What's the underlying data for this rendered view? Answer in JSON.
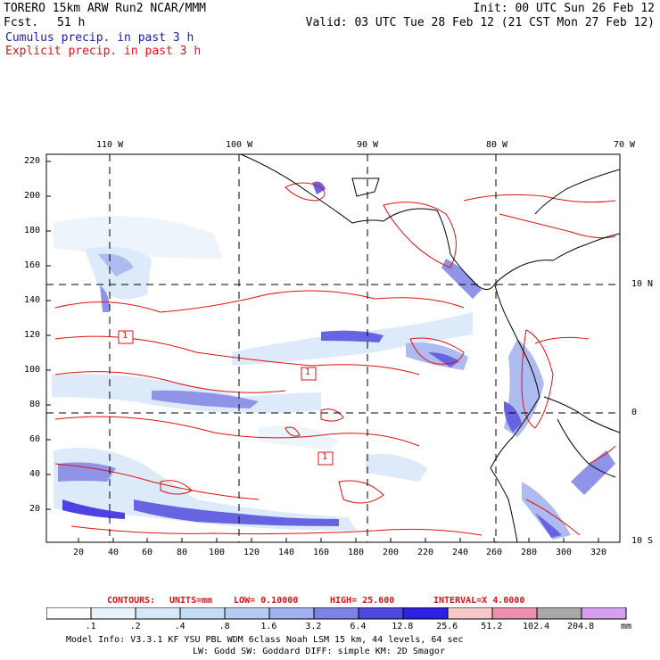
{
  "header": {
    "model_line": "TORERO  15km ARW   Run2    NCAR/MMM",
    "fcst_label": "Fcst.",
    "fcst_value": "51 h",
    "init": "Init: 00 UTC Sun 26 Feb 12",
    "valid": "Valid: 03 UTC Tue 28 Feb 12 (21 CST Mon 27 Feb 12)",
    "field1": "Cumulus precip. in past 3 h",
    "field2": "Explicit precip. in past 3 h"
  },
  "axes": {
    "top_lon_labels": [
      "110 W",
      "100 W",
      "90 W",
      "80 W",
      "70 W"
    ],
    "right_lat_labels": [
      "10 N",
      "0",
      "10 S"
    ],
    "left_y_ticks": [
      "220",
      "200",
      "180",
      "160",
      "140",
      "120",
      "100",
      "80",
      "60",
      "40",
      "20"
    ],
    "bottom_x_ticks": [
      "20",
      "40",
      "60",
      "80",
      "100",
      "120",
      "140",
      "160",
      "180",
      "200",
      "220",
      "240",
      "260",
      "280",
      "300",
      "320"
    ]
  },
  "contour_labels": [
    "1",
    "1",
    "1"
  ],
  "contours_line": {
    "label": "CONTOURS:",
    "units": "UNITS=mm",
    "low": "LOW= 0.10000",
    "high": "HIGH=  25.600",
    "interval": "INTERVAL=X  4.0000"
  },
  "colorbar": {
    "values": [
      ".1",
      ".2",
      ".4",
      ".8",
      "1.6",
      "3.2",
      "6.4",
      "12.8",
      "25.6",
      "51.2",
      "102.4",
      "204.8"
    ],
    "unit": "mm",
    "colors": [
      "#ffffff",
      "#eaf3fb",
      "#d6e7f8",
      "#c4dcf5",
      "#b6cdf2",
      "#a1b0ef",
      "#7c82e6",
      "#4d49de",
      "#2c21e0",
      "#f7c8c8",
      "#ee8fae",
      "#a8a8a8",
      "#d79ff0"
    ]
  },
  "footer": {
    "line1": "Model Info: V3.3.1    KF      YSU PBL   WDM 6class  Noah LSM  15 km,   44 levels,   64 sec",
    "line2": "LW: Godd SW: Goddard DIFF: simple KM: 2D Smagor"
  }
}
